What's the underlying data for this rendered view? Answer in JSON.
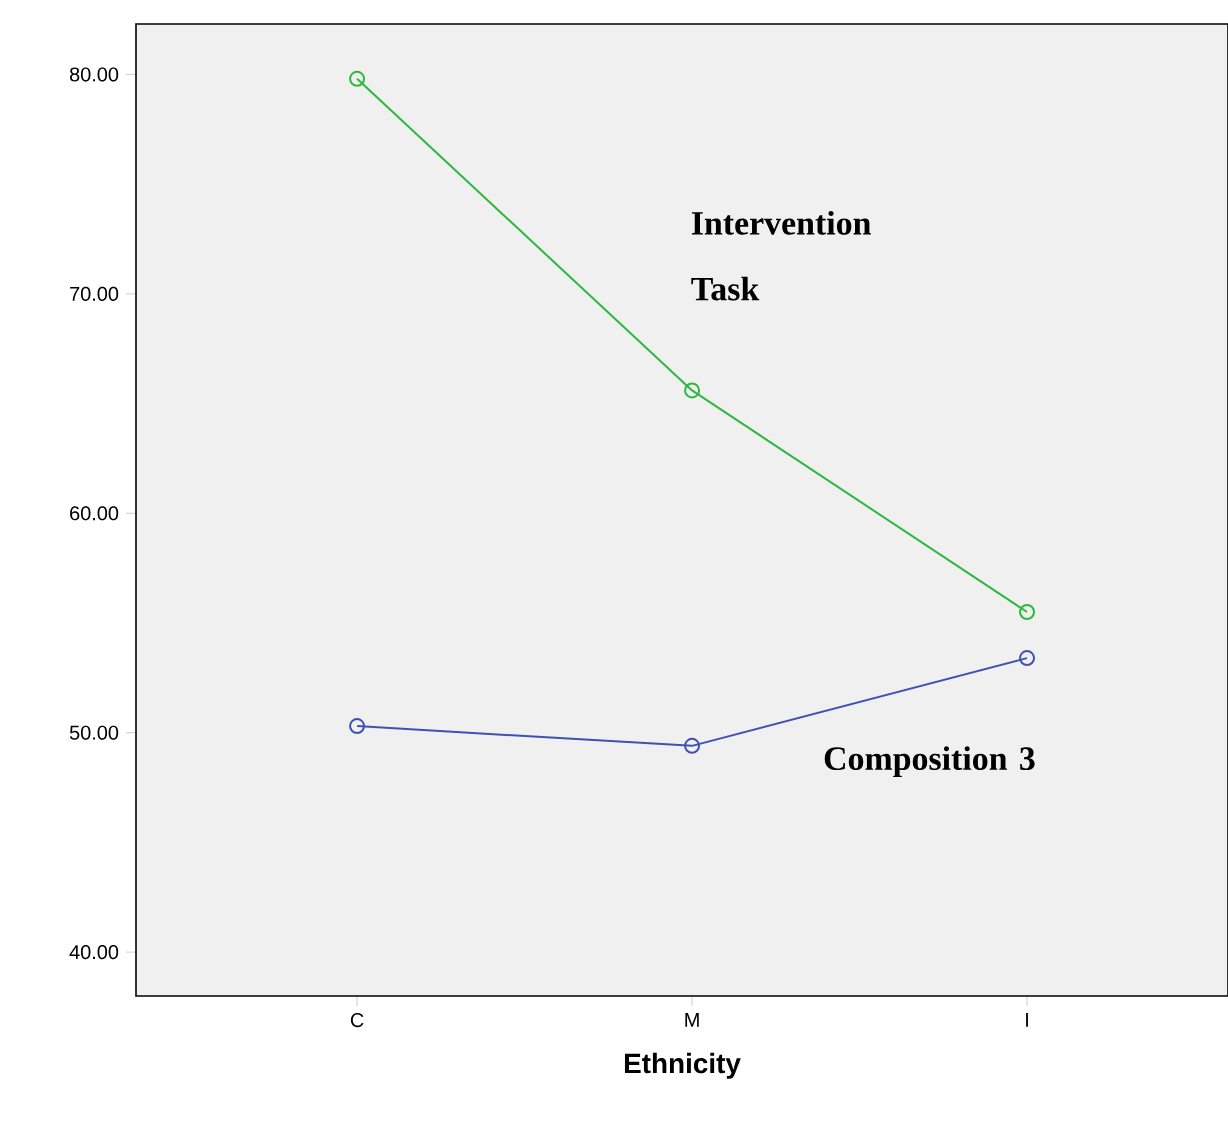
{
  "chart_data": {
    "type": "line",
    "xlabel": "Ethnicity",
    "categories": [
      "C",
      "M",
      "I"
    ],
    "series": [
      {
        "name": "Intervention Task",
        "color": "#2db83d",
        "values": [
          79.8,
          65.6,
          55.5
        ]
      },
      {
        "name": "Composition 3",
        "color": "#3f51b1",
        "values": [
          50.3,
          49.4,
          53.4
        ]
      }
    ],
    "ylim": [
      38.0,
      82.3
    ],
    "yticks": [
      {
        "value": 40,
        "label": "40.00"
      },
      {
        "value": 50,
        "label": "50.00"
      },
      {
        "value": 60,
        "label": "60.00"
      },
      {
        "value": 70,
        "label": "70.00"
      },
      {
        "value": 80,
        "label": "80.00"
      }
    ],
    "grid": false,
    "marker": "circle",
    "line_style": "solid"
  }
}
